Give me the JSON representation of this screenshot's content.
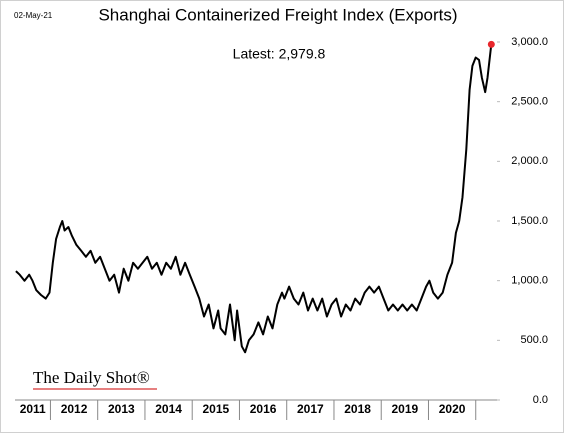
{
  "chart_data": {
    "type": "line",
    "title": "Shanghai Containerized Freight Index (Exports)",
    "date": "02-May-21",
    "annotation": "Latest:  2,979.8",
    "source": "The Daily Shot®",
    "x": [
      2011.27,
      2011.35,
      2011.45,
      2011.55,
      2011.62,
      2011.7,
      2011.8,
      2011.9,
      2011.98,
      2012.05,
      2012.12,
      2012.2,
      2012.25,
      2012.3,
      2012.38,
      2012.45,
      2012.55,
      2012.65,
      2012.75,
      2012.85,
      2012.95,
      2013.05,
      2013.15,
      2013.25,
      2013.35,
      2013.45,
      2013.55,
      2013.65,
      2013.75,
      2013.85,
      2013.95,
      2014.05,
      2014.15,
      2014.25,
      2014.35,
      2014.45,
      2014.55,
      2014.65,
      2014.75,
      2014.85,
      2014.95,
      2015.05,
      2015.15,
      2015.25,
      2015.35,
      2015.45,
      2015.55,
      2015.6,
      2015.7,
      2015.8,
      2015.9,
      2015.95,
      2016.05,
      2016.12,
      2016.2,
      2016.3,
      2016.4,
      2016.5,
      2016.6,
      2016.7,
      2016.8,
      2016.9,
      2016.95,
      2017.05,
      2017.15,
      2017.25,
      2017.35,
      2017.45,
      2017.55,
      2017.65,
      2017.75,
      2017.85,
      2017.95,
      2018.05,
      2018.15,
      2018.25,
      2018.35,
      2018.45,
      2018.55,
      2018.65,
      2018.75,
      2018.85,
      2018.95,
      2019.05,
      2019.15,
      2019.25,
      2019.35,
      2019.45,
      2019.55,
      2019.65,
      2019.75,
      2019.85,
      2019.95,
      2020.02,
      2020.1,
      2020.2,
      2020.3,
      2020.4,
      2020.5,
      2020.58,
      2020.65,
      2020.72,
      2020.8,
      2020.87,
      2020.93,
      2021.0,
      2021.07,
      2021.13,
      2021.2,
      2021.25,
      2021.33
    ],
    "series": [
      {
        "color": "#000000",
        "highlight_color": "#e8262b",
        "values": [
          1080,
          1050,
          1000,
          1050,
          1000,
          920,
          880,
          850,
          900,
          1150,
          1350,
          1450,
          1500,
          1420,
          1450,
          1380,
          1300,
          1250,
          1200,
          1250,
          1150,
          1200,
          1100,
          1000,
          1050,
          900,
          1100,
          1000,
          1150,
          1100,
          1150,
          1200,
          1100,
          1150,
          1050,
          1150,
          1100,
          1200,
          1050,
          1150,
          1050,
          950,
          850,
          700,
          800,
          600,
          750,
          600,
          550,
          800,
          500,
          750,
          450,
          400,
          500,
          550,
          650,
          550,
          700,
          600,
          800,
          900,
          850,
          950,
          850,
          800,
          900,
          750,
          850,
          750,
          850,
          700,
          800,
          850,
          700,
          800,
          750,
          850,
          800,
          900,
          950,
          900,
          950,
          850,
          750,
          800,
          750,
          800,
          750,
          800,
          750,
          850,
          950,
          1000,
          900,
          850,
          900,
          1050,
          1150,
          1400,
          1500,
          1700,
          2100,
          2600,
          2800,
          2870,
          2850,
          2700,
          2580,
          2700,
          2979.8
        ]
      }
    ],
    "xlim": [
      2011.25,
      2021.45
    ],
    "xticks": [
      {
        "value": 2011.5,
        "label": "2011"
      },
      {
        "value": 2012.5,
        "label": "2012"
      },
      {
        "value": 2013.5,
        "label": "2013"
      },
      {
        "value": 2014.5,
        "label": "2014"
      },
      {
        "value": 2015.5,
        "label": "2015"
      },
      {
        "value": 2016.5,
        "label": "2016"
      },
      {
        "value": 2017.5,
        "label": "2017"
      },
      {
        "value": 2018.5,
        "label": "2018"
      },
      {
        "value": 2019.5,
        "label": "2019"
      },
      {
        "value": 2020.5,
        "label": "2020"
      }
    ],
    "ylim": [
      0,
      3000
    ],
    "yticks": [
      {
        "value": 0,
        "label": "0.0"
      },
      {
        "value": 500,
        "label": "500.0"
      },
      {
        "value": 1000,
        "label": "1,000.0"
      },
      {
        "value": 1500,
        "label": "1,500.0"
      },
      {
        "value": 2000,
        "label": "2,000.0"
      },
      {
        "value": 2500,
        "label": "2,500.0"
      },
      {
        "value": 3000,
        "label": "3,000.0"
      }
    ]
  }
}
